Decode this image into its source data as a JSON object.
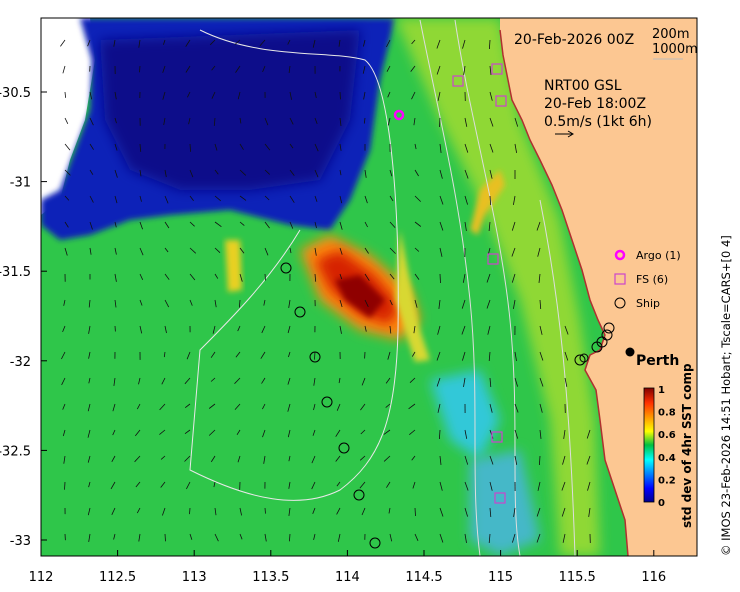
{
  "header": {
    "date": "20-Feb-2026 00Z",
    "contour_label_1": "200m",
    "contour_label_2": "1000m"
  },
  "current_info": {
    "line1": "NRT00 GSL",
    "line2": "20-Feb 18:00Z",
    "line3": "0.5m/s (1kt 6h)"
  },
  "legend": {
    "argo": "Argo (1)",
    "fs": "FS (6)",
    "ship": "Ship"
  },
  "city": "Perth",
  "colorbar": {
    "label": "std dev of 4hr SST comp",
    "ticks": [
      "1",
      "0.8",
      "0.6",
      "0.4",
      "0.2",
      "0"
    ]
  },
  "credit": "© IMOS 23-Feb-2026 14:51 Hobart; Tscale=CARS+[0 4]",
  "axes": {
    "x_ticks": [
      "112",
      "112.5",
      "113",
      "113.5",
      "114",
      "114.5",
      "115",
      "115.5",
      "116"
    ],
    "y_ticks": [
      "-30.5",
      "-31",
      "-31.5",
      "-32",
      "-32.5",
      "-33"
    ]
  },
  "colors": {
    "land": "#fcc792",
    "argo": "#ff00ff",
    "fs": "#cc44cc",
    "ship": "#000000"
  }
}
